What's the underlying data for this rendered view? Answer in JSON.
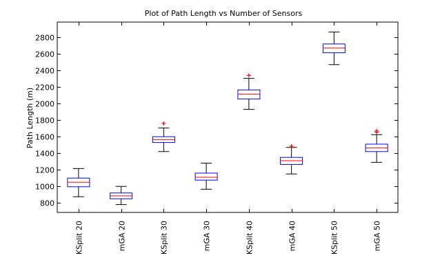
{
  "chart_data": {
    "type": "box",
    "title": "Plot of Path Length vs Number of Sensors",
    "xlabel": "",
    "ylabel": "Path Length (m)",
    "ylim": [
      680,
      2980
    ],
    "yticks": [
      800,
      1000,
      1200,
      1400,
      1600,
      1800,
      2000,
      2200,
      2400,
      2600,
      2800
    ],
    "grid": false,
    "categories": [
      "KSplit 20",
      "mGA 20",
      "KSplit 30",
      "mGA 30",
      "KSplit 40",
      "mGA 40",
      "KSplit 50",
      "mGA 50"
    ],
    "boxes": [
      {
        "label": "KSplit 20",
        "whisker_low": 870,
        "q1": 990,
        "median": 1045,
        "q3": 1095,
        "whisker_high": 1210,
        "outliers": []
      },
      {
        "label": "mGA 20",
        "whisker_low": 775,
        "q1": 845,
        "median": 880,
        "q3": 915,
        "whisker_high": 995,
        "outliers": []
      },
      {
        "label": "KSplit 30",
        "whisker_low": 1415,
        "q1": 1525,
        "median": 1560,
        "q3": 1595,
        "whisker_high": 1700,
        "outliers": [
          1755
        ]
      },
      {
        "label": "mGA 30",
        "whisker_low": 960,
        "q1": 1070,
        "median": 1105,
        "q3": 1155,
        "whisker_high": 1275,
        "outliers": []
      },
      {
        "label": "KSplit 40",
        "whisker_low": 1925,
        "q1": 2050,
        "median": 2110,
        "q3": 2160,
        "whisker_high": 2300,
        "outliers": [
          2335
        ]
      },
      {
        "label": "mGA 40",
        "whisker_low": 1145,
        "q1": 1260,
        "median": 1305,
        "q3": 1345,
        "whisker_high": 1465,
        "outliers": [
          1480
        ]
      },
      {
        "label": "KSplit 50",
        "whisker_low": 2465,
        "q1": 2610,
        "median": 2665,
        "q3": 2715,
        "whisker_high": 2860,
        "outliers": []
      },
      {
        "label": "mGA 50",
        "whisker_low": 1285,
        "q1": 1415,
        "median": 1460,
        "q3": 1505,
        "whisker_high": 1620,
        "outliers": [
          1650,
          1665
        ]
      }
    ],
    "colors": {
      "box": "#0000ff",
      "median": "#ff0000",
      "outlier": "#ff0000",
      "whisker": "#000000",
      "axes": "#000000"
    }
  }
}
